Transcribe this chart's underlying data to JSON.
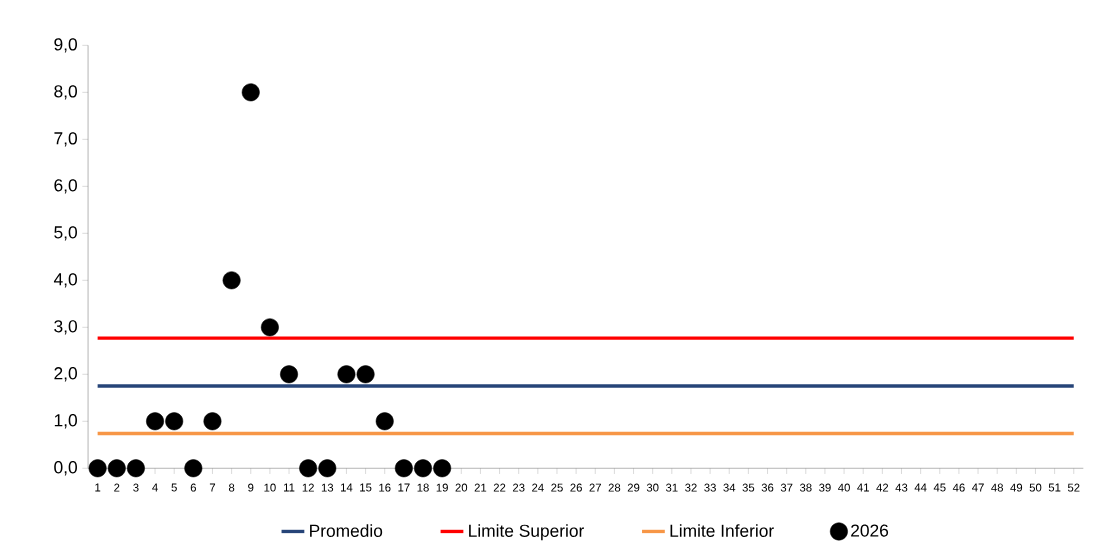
{
  "chart_data": {
    "type": "line",
    "categories": [
      "1",
      "2",
      "3",
      "4",
      "5",
      "6",
      "7",
      "8",
      "9",
      "10",
      "11",
      "12",
      "13",
      "14",
      "15",
      "16",
      "17",
      "18",
      "19",
      "20",
      "21",
      "22",
      "23",
      "24",
      "25",
      "26",
      "27",
      "28",
      "29",
      "30",
      "31",
      "32",
      "33",
      "34",
      "35",
      "36",
      "37",
      "38",
      "39",
      "40",
      "41",
      "42",
      "43",
      "44",
      "45",
      "46",
      "47",
      "48",
      "49",
      "50",
      "51",
      "52"
    ],
    "ylim": [
      0,
      9
    ],
    "yticks": [
      {
        "value": 0,
        "label": "0,0"
      },
      {
        "value": 1,
        "label": "1,0"
      },
      {
        "value": 2,
        "label": "2,0"
      },
      {
        "value": 3,
        "label": "3,0"
      },
      {
        "value": 4,
        "label": "4,0"
      },
      {
        "value": 5,
        "label": "5,0"
      },
      {
        "value": 6,
        "label": "6,0"
      },
      {
        "value": 7,
        "label": "7,0"
      },
      {
        "value": 8,
        "label": "8,0"
      },
      {
        "value": 9,
        "label": "9,0"
      }
    ],
    "legend": "bottom",
    "series": [
      {
        "name": "Promedio",
        "color": "#264478",
        "values": [
          1.75,
          1.75,
          1.75,
          1.75,
          1.75,
          1.75,
          1.75,
          1.75,
          1.75,
          1.75,
          1.75,
          1.75,
          1.75,
          1.75,
          1.75,
          1.75,
          1.75,
          1.75,
          1.75,
          1.75,
          1.75,
          1.75,
          1.75,
          1.75,
          1.75,
          1.75,
          1.75,
          1.75,
          1.75,
          1.75,
          1.75,
          1.75,
          1.75,
          1.75,
          1.75,
          1.75,
          1.75,
          1.75,
          1.75,
          1.75,
          1.75,
          1.75,
          1.75,
          1.75,
          1.75,
          1.75,
          1.75,
          1.75,
          1.75,
          1.75,
          1.75,
          1.75
        ]
      },
      {
        "name": "Limite Superior",
        "color": "#ff0000",
        "values": [
          2.77,
          2.77,
          2.77,
          2.77,
          2.77,
          2.77,
          2.77,
          2.77,
          2.77,
          2.77,
          2.77,
          2.77,
          2.77,
          2.77,
          2.77,
          2.77,
          2.77,
          2.77,
          2.77,
          2.77,
          2.77,
          2.77,
          2.77,
          2.77,
          2.77,
          2.77,
          2.77,
          2.77,
          2.77,
          2.77,
          2.77,
          2.77,
          2.77,
          2.77,
          2.77,
          2.77,
          2.77,
          2.77,
          2.77,
          2.77,
          2.77,
          2.77,
          2.77,
          2.77,
          2.77,
          2.77,
          2.77,
          2.77,
          2.77,
          2.77,
          2.77,
          2.77
        ]
      },
      {
        "name": "Limite Inferior",
        "color": "#f79646",
        "values": [
          0.74,
          0.74,
          0.74,
          0.74,
          0.74,
          0.74,
          0.74,
          0.74,
          0.74,
          0.74,
          0.74,
          0.74,
          0.74,
          0.74,
          0.74,
          0.74,
          0.74,
          0.74,
          0.74,
          0.74,
          0.74,
          0.74,
          0.74,
          0.74,
          0.74,
          0.74,
          0.74,
          0.74,
          0.74,
          0.74,
          0.74,
          0.74,
          0.74,
          0.74,
          0.74,
          0.74,
          0.74,
          0.74,
          0.74,
          0.74,
          0.74,
          0.74,
          0.74,
          0.74,
          0.74,
          0.74,
          0.74,
          0.74,
          0.74,
          0.74,
          0.74,
          0.74
        ]
      },
      {
        "name": "2026",
        "color": "#000000",
        "type": "scatter",
        "marker": "circle",
        "values": [
          0,
          0,
          0,
          1,
          1,
          0,
          1,
          4,
          8,
          3,
          2,
          0,
          0,
          2,
          2,
          1,
          0,
          0,
          0,
          null,
          null,
          null,
          null,
          null,
          null,
          null,
          null,
          null,
          null,
          null,
          null,
          null,
          null,
          null,
          null,
          null,
          null,
          null,
          null,
          null,
          null,
          null,
          null,
          null,
          null,
          null,
          null,
          null,
          null,
          null,
          null,
          null
        ]
      }
    ]
  }
}
